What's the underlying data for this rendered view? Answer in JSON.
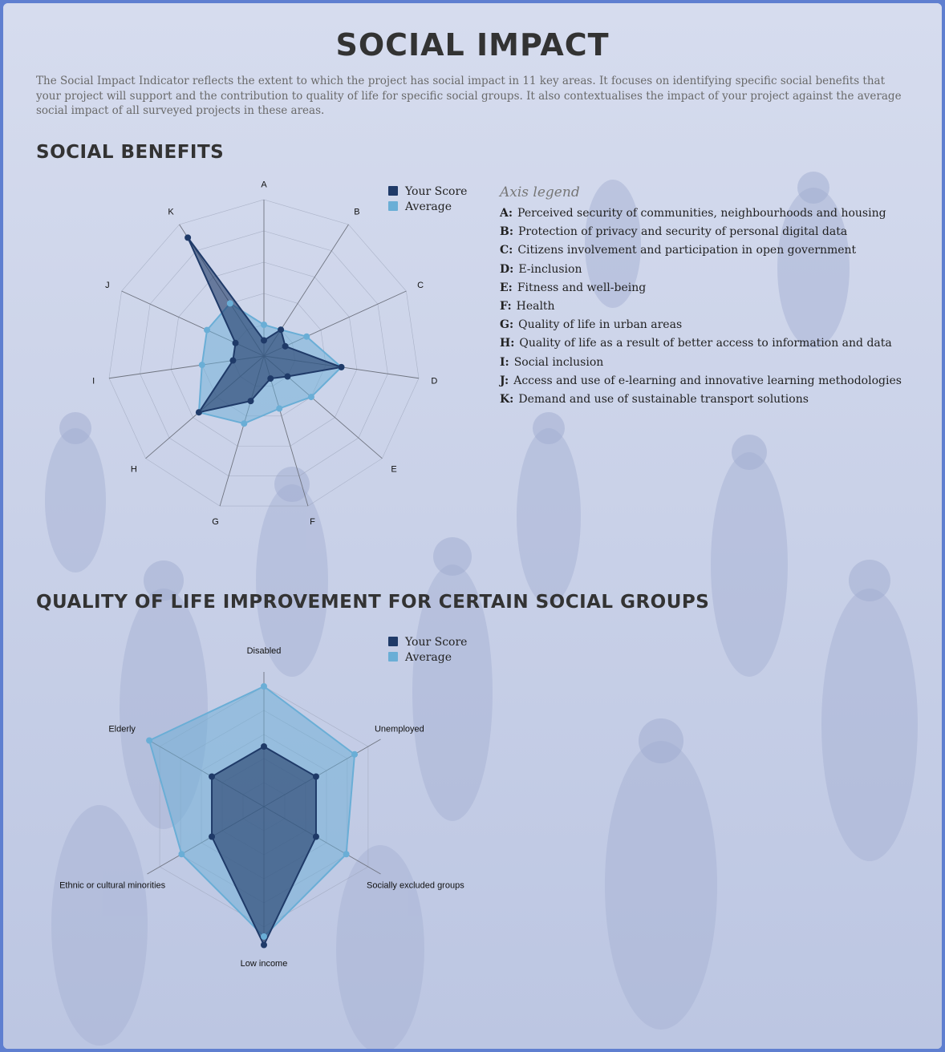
{
  "page": {
    "title": "SOCIAL IMPACT",
    "intro": "The Social Impact Indicator reflects the extent to which the project has social impact in 11 key areas. It focuses on identifying specific social benefits that your project will support and the contribution to quality of life for specific social groups. It also contextualises the impact of your project against the average social impact of all surveyed projects in these areas."
  },
  "colors": {
    "your_score": "#1f3a68",
    "average": "#6aaed6",
    "heading": "#333333"
  },
  "sections": {
    "benefits_title": "SOCIAL BENEFITS",
    "groups_title": "QUALITY OF LIFE IMPROVEMENT FOR CERTAIN SOCIAL GROUPS"
  },
  "legend": {
    "your_score": "Your Score",
    "average": "Average"
  },
  "axis_legend": {
    "title": "Axis legend",
    "items": [
      {
        "key": "A:",
        "text": "Perceived security of communities, neighbourhoods and housing"
      },
      {
        "key": "B:",
        "text": "Protection of privacy and security of personal digital data"
      },
      {
        "key": "C:",
        "text": "Citizens involvement and participation in open government"
      },
      {
        "key": "D:",
        "text": "E-inclusion"
      },
      {
        "key": "E:",
        "text": "Fitness and well-being"
      },
      {
        "key": "F:",
        "text": "Health"
      },
      {
        "key": "G:",
        "text": "Quality of life in urban areas"
      },
      {
        "key": "H:",
        "text": "Quality of life as a result of better access to information and data"
      },
      {
        "key": "I:",
        "text": "Social inclusion"
      },
      {
        "key": "J:",
        "text": "Access and use of e-learning and innovative learning methodologies"
      },
      {
        "key": "K:",
        "text": "Demand and use of sustainable transport solutions"
      }
    ]
  },
  "chart_data": [
    {
      "type": "radar",
      "axes": [
        "A",
        "B",
        "C",
        "D",
        "E",
        "F",
        "G",
        "H",
        "I",
        "J",
        "K"
      ],
      "range": [
        0,
        10
      ],
      "grid": true,
      "legend_position": "top-right",
      "series": [
        {
          "name": "Your Score",
          "values": [
            1.0,
            2.0,
            1.5,
            5.0,
            2.0,
            1.5,
            3.0,
            5.5,
            2.0,
            2.0,
            9.0
          ]
        },
        {
          "name": "Average",
          "values": [
            2.0,
            2.0,
            3.0,
            5.0,
            4.0,
            3.5,
            4.5,
            5.5,
            4.0,
            4.0,
            4.0
          ]
        }
      ]
    },
    {
      "type": "radar",
      "axes": [
        "Disabled",
        "Unemployed",
        "Socially excluded groups",
        "Low income",
        "Ethnic or cultural minorities",
        "Elderly"
      ],
      "range": [
        0,
        10
      ],
      "grid": true,
      "legend_position": "top-right",
      "series": [
        {
          "name": "Your Score",
          "values": [
            5.0,
            5.0,
            5.0,
            11.5,
            5.0,
            5.0
          ]
        },
        {
          "name": "Average",
          "values": [
            10.0,
            8.7,
            7.9,
            10.8,
            7.9,
            11.0
          ]
        }
      ]
    }
  ]
}
